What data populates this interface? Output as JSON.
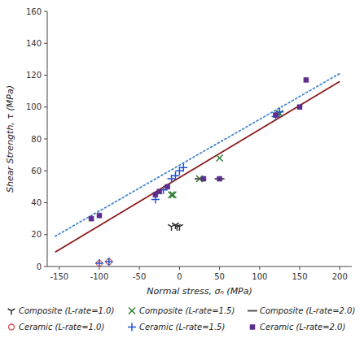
{
  "chart_data": {
    "type": "scatter",
    "xlabel": "Normal stress, σₙ (MPa)",
    "ylabel": "Shear Strength, τ (MPa)",
    "xlim": [
      -165,
      215
    ],
    "ylim": [
      0,
      160
    ],
    "xticks": [
      -150,
      -100,
      -50,
      0,
      50,
      100,
      150,
      200
    ],
    "yticks": [
      0,
      20,
      40,
      60,
      80,
      100,
      120,
      140,
      160
    ],
    "grid": false,
    "legend": "bottom",
    "series": [
      {
        "type": "line",
        "color": "#8b1a1a",
        "line_style": "solid",
        "x": [
          -155,
          200
        ],
        "values": [
          9,
          116
        ]
      },
      {
        "type": "line",
        "color": "#4488cc",
        "line_style": "dotted",
        "x": [
          -155,
          200
        ],
        "values": [
          19,
          121
        ]
      },
      {
        "name": "Composite (L-rate=1.0)",
        "type": "scatter",
        "color": "#333333",
        "marker": "tri_down",
        "x": [
          -10,
          -5,
          -3,
          0
        ],
        "values": [
          25,
          26,
          25,
          25
        ]
      },
      {
        "name": "Composite (L-rate=1.5)",
        "type": "scatter",
        "color": "#2e7d32",
        "marker": "x",
        "x": [
          -10,
          -8,
          25,
          50,
          125
        ],
        "values": [
          45,
          45,
          55,
          68,
          96
        ]
      },
      {
        "name": "Composite (L-rate=2.0)",
        "type": "scatter",
        "color": "#555555",
        "marker": "hline",
        "x": [
          25,
          50
        ],
        "values": [
          55,
          55
        ]
      },
      {
        "name": "Ceramic (L-rate=1.0)",
        "type": "scatter",
        "color": "#d9534f",
        "marker": "open_circle",
        "x": [
          -100,
          -88
        ],
        "values": [
          2,
          3
        ]
      },
      {
        "name": "Ceramic (L-rate=1.5)",
        "type": "scatter",
        "color": "#2255cc",
        "marker": "plus",
        "x": [
          -100,
          -88,
          -30,
          -20,
          -10,
          -5,
          0,
          5,
          120,
          125
        ],
        "values": [
          2,
          3,
          42,
          48,
          55,
          57,
          60,
          62,
          94,
          97
        ]
      },
      {
        "name": "Ceramic (L-rate=2.0)",
        "type": "scatter",
        "color": "#5b2d8e",
        "marker": "square",
        "x": [
          -110,
          -100,
          -30,
          -25,
          -15,
          30,
          50,
          120,
          150,
          158
        ],
        "values": [
          30,
          32,
          45,
          47,
          50,
          55,
          55,
          95,
          100,
          117
        ]
      }
    ]
  }
}
